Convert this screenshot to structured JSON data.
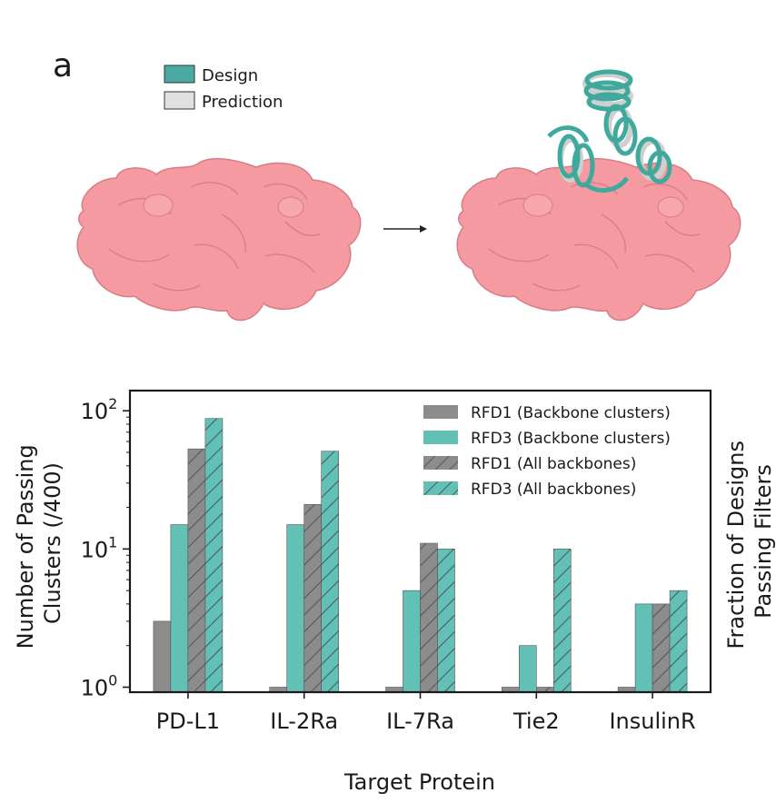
{
  "panel_label": "a",
  "structure_legend": {
    "items": [
      {
        "label": "Design",
        "color": "#4aa9a0"
      },
      {
        "label": "Prediction",
        "color": "#e0e0e0"
      }
    ]
  },
  "structure_images": {
    "left": "target-surface",
    "arrow": "arrow-right-icon",
    "right": "target-surface-with-designed-binder",
    "surface_color": "#f59aa1",
    "helix_color": "#3fa99c"
  },
  "colors": {
    "rfd1": "#8c8c8c",
    "rfd3": "#62c0b4",
    "hatch": "#4b5a66"
  },
  "chart_data": {
    "type": "bar",
    "categories": [
      "PD-L1",
      "IL-2Ra",
      "IL-7Ra",
      "Tie2",
      "InsulinR"
    ],
    "series": [
      {
        "name": "RFD1 (Backbone clusters)",
        "values": [
          3,
          1,
          1,
          1,
          1
        ],
        "color": "#8c8c8c",
        "hatched": false
      },
      {
        "name": "RFD3 (Backbone clusters)",
        "values": [
          15,
          15,
          5,
          2,
          4
        ],
        "color": "#62c0b4",
        "hatched": false
      },
      {
        "name": "RFD1 (All backbones)",
        "values": [
          53,
          21,
          11,
          1,
          4
        ],
        "color": "#8c8c8c",
        "hatched": true
      },
      {
        "name": "RFD3 (All backbones)",
        "values": [
          88,
          51,
          10,
          10,
          5
        ],
        "color": "#62c0b4",
        "hatched": true
      }
    ],
    "xlabel": "Target Protein",
    "ylabel_lines": [
      "Number of Passing",
      "Clusters (/400)"
    ],
    "ylabel_right_lines": [
      "Fraction of Designs",
      "Passing Filters"
    ],
    "yscale": "log",
    "ylim": [
      0.92,
      140
    ],
    "yticks": [
      {
        "value": 1,
        "base": "10",
        "exp": "0"
      },
      {
        "value": 10,
        "base": "10",
        "exp": "1"
      },
      {
        "value": 100,
        "base": "10",
        "exp": "2"
      }
    ],
    "grid": false,
    "legend_position": "top-right"
  }
}
